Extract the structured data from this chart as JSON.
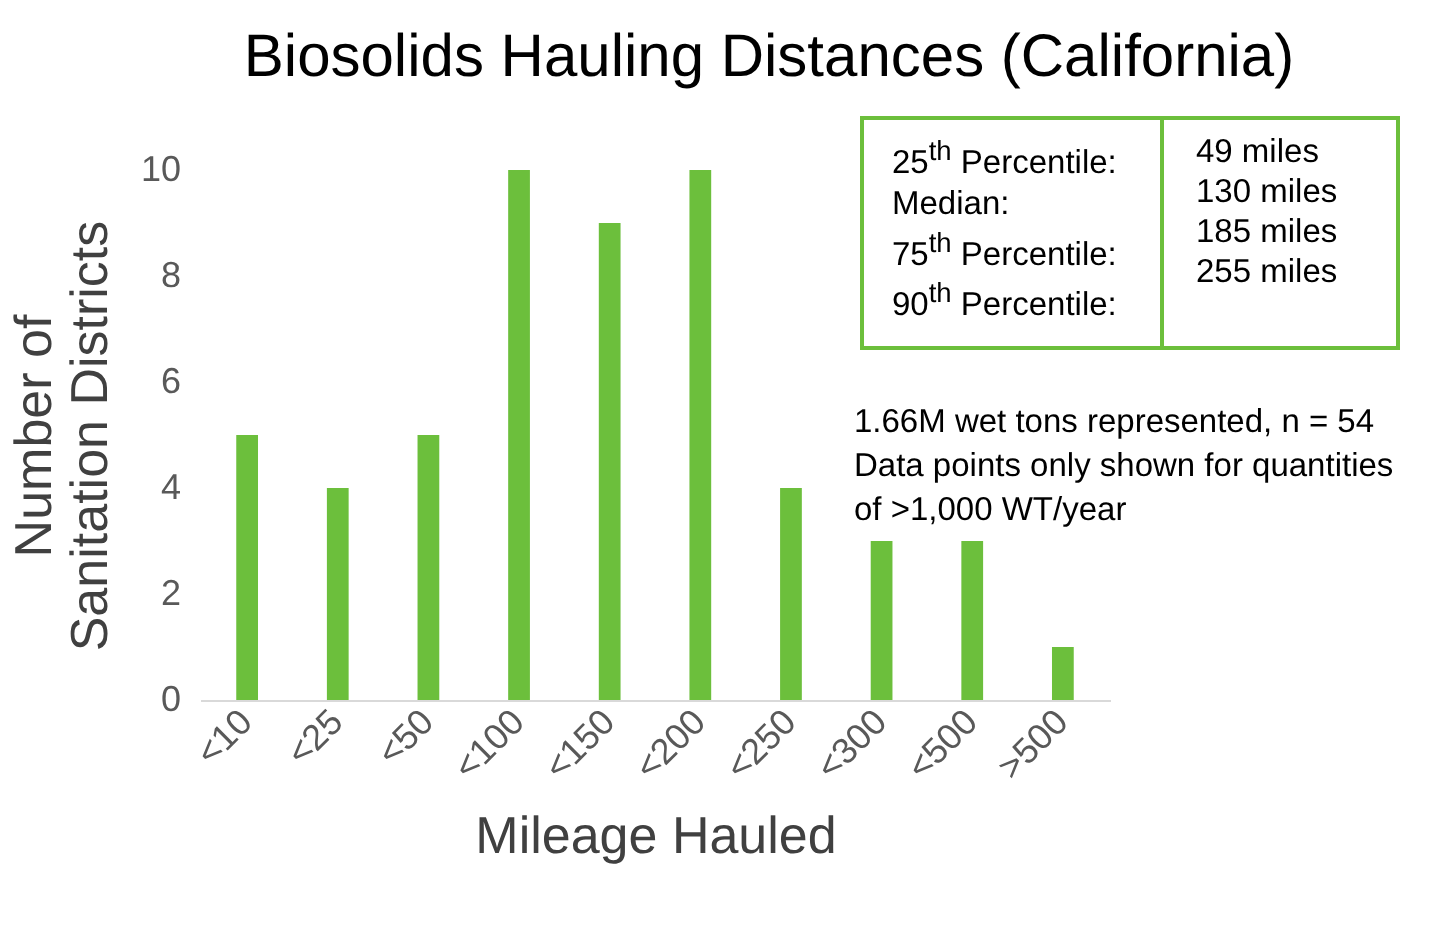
{
  "chart_data": {
    "type": "bar",
    "title": "Biosolids Hauling Distances (California)",
    "xlabel": "Mileage Hauled",
    "ylabel": "Number of Sanitation Districts",
    "categories": [
      "<10",
      "<25",
      "<50",
      "<100",
      "<150",
      "<200",
      "<250",
      "<300",
      "<500",
      ">500"
    ],
    "values": [
      5,
      4,
      5,
      10,
      9,
      10,
      4,
      3,
      3,
      1
    ],
    "color": "#6cbf3c",
    "ylim": [
      0,
      10
    ],
    "yticks": [
      0,
      2,
      4,
      6,
      8,
      10
    ],
    "annotations": [
      "25$^{th}$ Percentile:",
      "49 miles",
      "Median:",
      "130 miles",
      "75$^{th}$ Percentile:",
      "185 miles",
      "90$^{th}$ Percentile:",
      "255 miles",
      "1.66M wet tons represented, n = 54",
      "Data points only shown for quantities of >1,000 WT/year"
    ]
  }
}
